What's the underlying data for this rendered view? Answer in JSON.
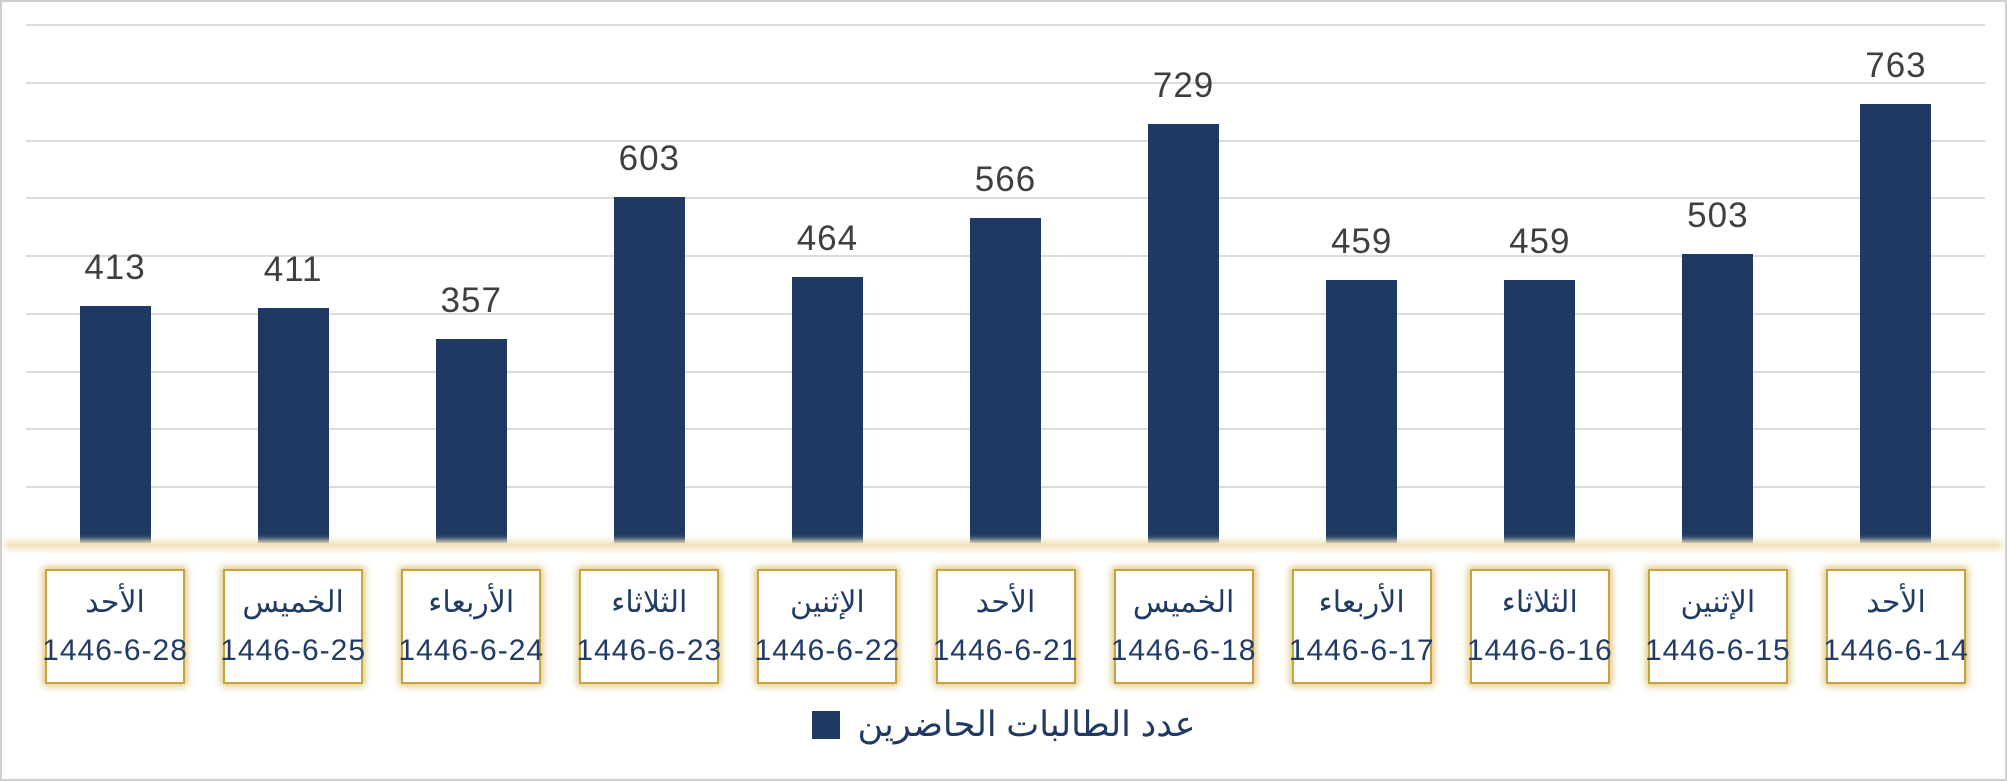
{
  "chart_data": {
    "type": "bar",
    "title": "",
    "legend": "عدد الطالبات الحاضرين",
    "direction": "rtl",
    "grid": true,
    "legend_position": "bottom-center",
    "ylim": [
      0,
      900
    ],
    "gridline_step": 100,
    "bar_color": "#1e3a62",
    "categories": [
      {
        "day": "الأحد",
        "date": "1446-6-28"
      },
      {
        "day": "الخميس",
        "date": "1446-6-25"
      },
      {
        "day": "الأربعاء",
        "date": "1446-6-24"
      },
      {
        "day": "الثلاثاء",
        "date": "1446-6-23"
      },
      {
        "day": "الإثنين",
        "date": "1446-6-22"
      },
      {
        "day": "الأحد",
        "date": "1446-6-21"
      },
      {
        "day": "الخميس",
        "date": "1446-6-18"
      },
      {
        "day": "الأربعاء",
        "date": "1446-6-17"
      },
      {
        "day": "الثلاثاء",
        "date": "1446-6-16"
      },
      {
        "day": "الإثنين",
        "date": "1446-6-15"
      },
      {
        "day": "الأحد",
        "date": "1446-6-14"
      }
    ],
    "values": [
      413,
      411,
      357,
      603,
      464,
      566,
      729,
      459,
      459,
      503,
      763
    ]
  },
  "colors": {
    "bar": "#1e3a62",
    "value_label": "#3f3f3f",
    "gridline": "#dbdbdb",
    "axis_line": "#f1e5bf",
    "label_border_gold": "#c7a33d",
    "label_text_navy": "#1f3b66",
    "legend_text_navy": "#1f3864",
    "frame_border": "#cfcfcf"
  }
}
